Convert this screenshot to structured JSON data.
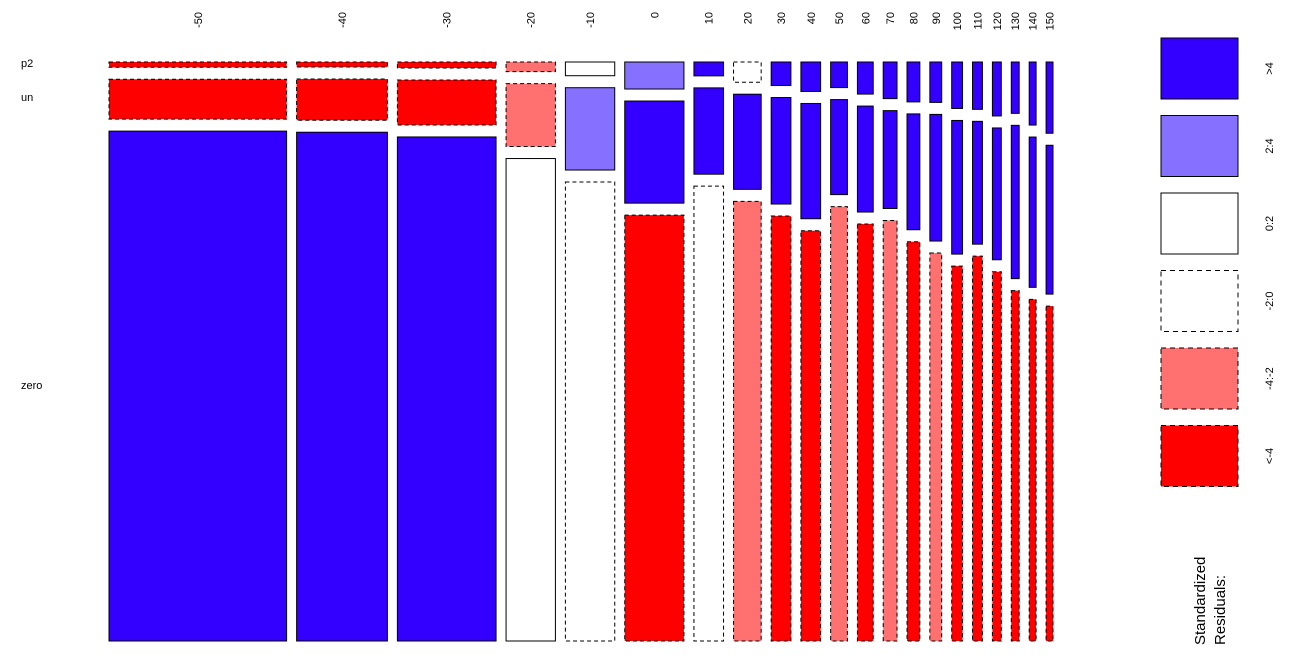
{
  "chart_data": {
    "type": "mosaic",
    "x_categories": [
      "-50",
      "-40",
      "-30",
      "-20",
      "-10",
      "0",
      "10",
      "20",
      "30",
      "40",
      "50",
      "60",
      "70",
      "80",
      "90",
      "100",
      "110",
      "120",
      "130",
      "140",
      "150"
    ],
    "y_categories": [
      "p2",
      "un",
      "zero"
    ],
    "column_widths": [
      1.8,
      0.92,
      1.0,
      0.5,
      0.5,
      0.6,
      0.3,
      0.28,
      0.2,
      0.2,
      0.17,
      0.16,
      0.14,
      0.13,
      0.12,
      0.11,
      0.1,
      0.09,
      0.08,
      0.07,
      0.07
    ],
    "proportions": {
      "p2": [
        0.0095,
        0.0091,
        0.0107,
        0.0174,
        0.0247,
        0.0487,
        0.025,
        0.0364,
        0.0424,
        0.0531,
        0.0461,
        0.0578,
        0.066,
        0.0719,
        0.0728,
        0.0837,
        0.0853,
        0.0972,
        0.0925,
        0.1136,
        0.1284
      ],
      "un": [
        0.0718,
        0.0742,
        0.0811,
        0.1133,
        0.1483,
        0.184,
        0.1555,
        0.1714,
        0.1919,
        0.2077,
        0.1712,
        0.1909,
        0.1763,
        0.2087,
        0.2282,
        0.2408,
        0.2213,
        0.2375,
        0.2762,
        0.2708,
        0.2682
      ],
      "zero": [
        0.9187,
        0.9167,
        0.9082,
        0.8693,
        0.827,
        0.7673,
        0.8195,
        0.7922,
        0.7657,
        0.7392,
        0.7827,
        0.7513,
        0.7577,
        0.7194,
        0.699,
        0.6755,
        0.6934,
        0.6653,
        0.6313,
        0.6156,
        0.6034
      ]
    },
    "residual_classes": {
      "p2": [
        "<-4",
        "<-4",
        "<-4",
        "-4:-2",
        "0:2",
        "2:4",
        ">4",
        "-2:0",
        ">4",
        ">4",
        ">4",
        ">4",
        ">4",
        ">4",
        ">4",
        ">4",
        ">4",
        ">4",
        ">4",
        ">4",
        ">4"
      ],
      "un": [
        "<-4",
        "<-4",
        "<-4",
        "-4:-2",
        "2:4",
        ">4",
        ">4",
        ">4",
        ">4",
        ">4",
        ">4",
        ">4",
        ">4",
        ">4",
        ">4",
        ">4",
        ">4",
        ">4",
        ">4",
        ">4",
        ">4"
      ],
      "zero": [
        ">4",
        ">4",
        ">4",
        "0:2",
        "-2:0",
        "<-4",
        "-2:0",
        "-4:-2",
        "<-4",
        "<-4",
        "-4:-2",
        "<-4",
        "-4:-2",
        "<-4",
        "-4:-2",
        "<-4",
        "<-4",
        "<-4",
        "<-4",
        "<-4",
        "<-4"
      ]
    },
    "legend": {
      "title": "Standardized\nResiduals:",
      "items": [
        {
          "label": ">4",
          "key": ">4",
          "color": "#3300ff",
          "dashed": false
        },
        {
          "label": "2:4",
          "key": "2:4",
          "color": "#8570ff",
          "dashed": false
        },
        {
          "label": "0:2",
          "key": "0:2",
          "color": "#ffffff",
          "dashed": false
        },
        {
          "label": "-2:0",
          "key": "-2:0",
          "color": "#ffffff",
          "dashed": true
        },
        {
          "label": "-4:-2",
          "key": "-4:-2",
          "color": "#ff7070",
          "dashed": true
        },
        {
          "label": "<-4",
          "key": "<-4",
          "color": "#ff0000",
          "dashed": true
        }
      ],
      "placement": "right"
    },
    "title": "",
    "xlabel": "",
    "ylabel": ""
  }
}
